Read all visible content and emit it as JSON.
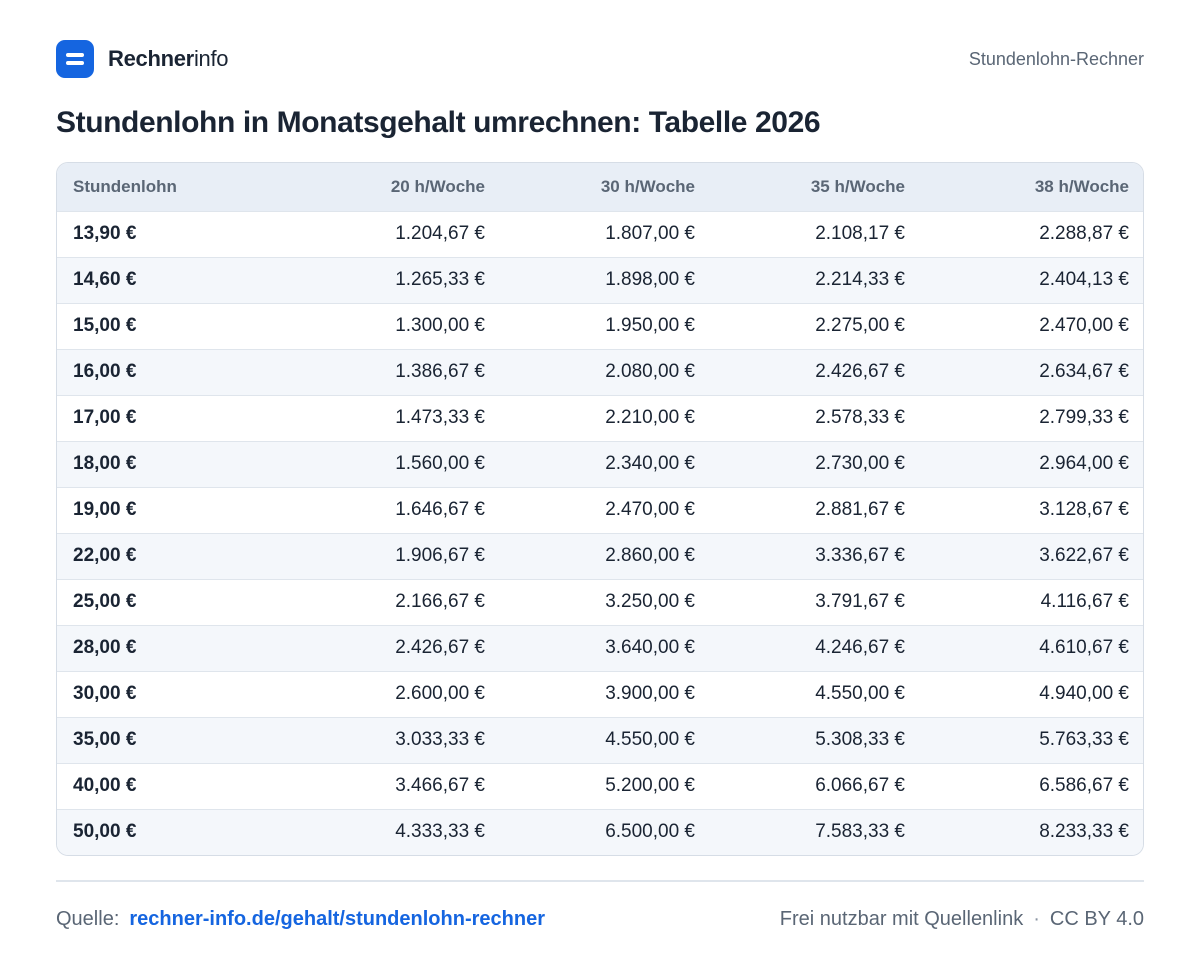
{
  "header": {
    "brand_strong": "Rechner",
    "brand_light": "info",
    "right_label": "Stundenlohn-Rechner"
  },
  "title": "Stundenlohn in Monatsgehalt umrechnen: Tabelle 2026",
  "table": {
    "columns": [
      "Stundenlohn",
      "20 h/Woche",
      "30 h/Woche",
      "35 h/Woche",
      "38 h/Woche"
    ],
    "rows": [
      [
        "13,90 €",
        "1.204,67 €",
        "1.807,00 €",
        "2.108,17 €",
        "2.288,87 €"
      ],
      [
        "14,60 €",
        "1.265,33 €",
        "1.898,00 €",
        "2.214,33 €",
        "2.404,13 €"
      ],
      [
        "15,00 €",
        "1.300,00 €",
        "1.950,00 €",
        "2.275,00 €",
        "2.470,00 €"
      ],
      [
        "16,00 €",
        "1.386,67 €",
        "2.080,00 €",
        "2.426,67 €",
        "2.634,67 €"
      ],
      [
        "17,00 €",
        "1.473,33 €",
        "2.210,00 €",
        "2.578,33 €",
        "2.799,33 €"
      ],
      [
        "18,00 €",
        "1.560,00 €",
        "2.340,00 €",
        "2.730,00 €",
        "2.964,00 €"
      ],
      [
        "19,00 €",
        "1.646,67 €",
        "2.470,00 €",
        "2.881,67 €",
        "3.128,67 €"
      ],
      [
        "22,00 €",
        "1.906,67 €",
        "2.860,00 €",
        "3.336,67 €",
        "3.622,67 €"
      ],
      [
        "25,00 €",
        "2.166,67 €",
        "3.250,00 €",
        "3.791,67 €",
        "4.116,67 €"
      ],
      [
        "28,00 €",
        "2.426,67 €",
        "3.640,00 €",
        "4.246,67 €",
        "4.610,67 €"
      ],
      [
        "30,00 €",
        "2.600,00 €",
        "3.900,00 €",
        "4.550,00 €",
        "4.940,00 €"
      ],
      [
        "35,00 €",
        "3.033,33 €",
        "4.550,00 €",
        "5.308,33 €",
        "5.763,33 €"
      ],
      [
        "40,00 €",
        "3.466,67 €",
        "5.200,00 €",
        "6.066,67 €",
        "6.586,67 €"
      ],
      [
        "50,00 €",
        "4.333,33 €",
        "6.500,00 €",
        "7.583,33 €",
        "8.233,33 €"
      ]
    ]
  },
  "footer": {
    "source_label": "Quelle:",
    "source_link": "rechner-info.de/gehalt/stundenlohn-rechner",
    "license_text": "Frei nutzbar mit Quellenlink",
    "separator": "·",
    "license_code": "CC BY 4.0"
  },
  "colors": {
    "accent": "#1565e0",
    "text": "#1a2433",
    "muted": "#5a6675",
    "header_bg": "#e8eef6",
    "stripe_bg": "#f4f7fb"
  },
  "icons": {
    "logo": "logo-icon"
  }
}
